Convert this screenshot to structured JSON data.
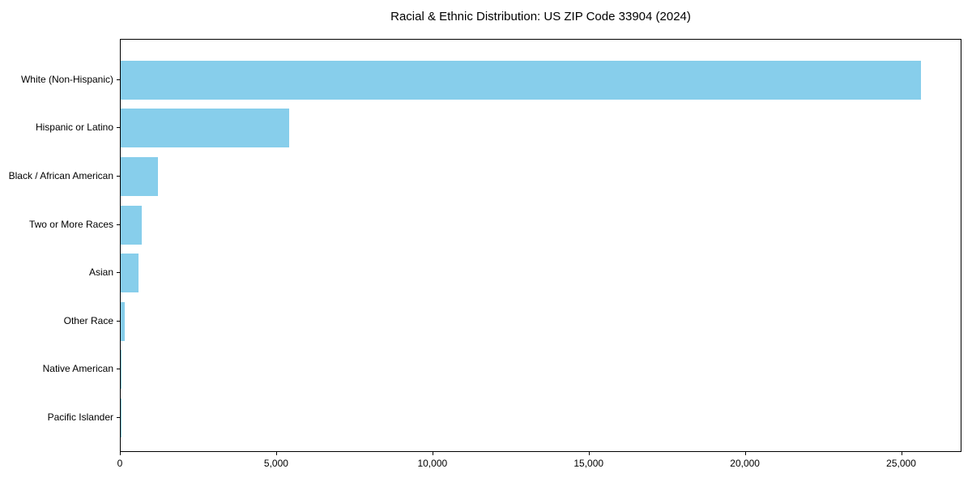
{
  "chart_data": {
    "type": "bar",
    "orientation": "horizontal",
    "title": "Racial & Ethnic Distribution: US ZIP Code 33904 (2024)",
    "categories": [
      "White (Non-Hispanic)",
      "Hispanic or Latino",
      "Black / African American",
      "Two or More Races",
      "Asian",
      "Other Race",
      "Native American",
      "Pacific Islander"
    ],
    "values": [
      25650,
      5400,
      1190,
      670,
      570,
      130,
      30,
      10
    ],
    "xlabel": "",
    "ylabel": "",
    "xlim": [
      0,
      26930
    ],
    "xticks": [
      0,
      5000,
      10000,
      15000,
      20000,
      25000
    ],
    "xtick_labels": [
      "0",
      "5,000",
      "10,000",
      "15,000",
      "20,000",
      "25,000"
    ],
    "bar_color": "#87CEEB",
    "grid": false,
    "legend": null,
    "background_color": "#ffffff",
    "spine_color": "#000000"
  }
}
